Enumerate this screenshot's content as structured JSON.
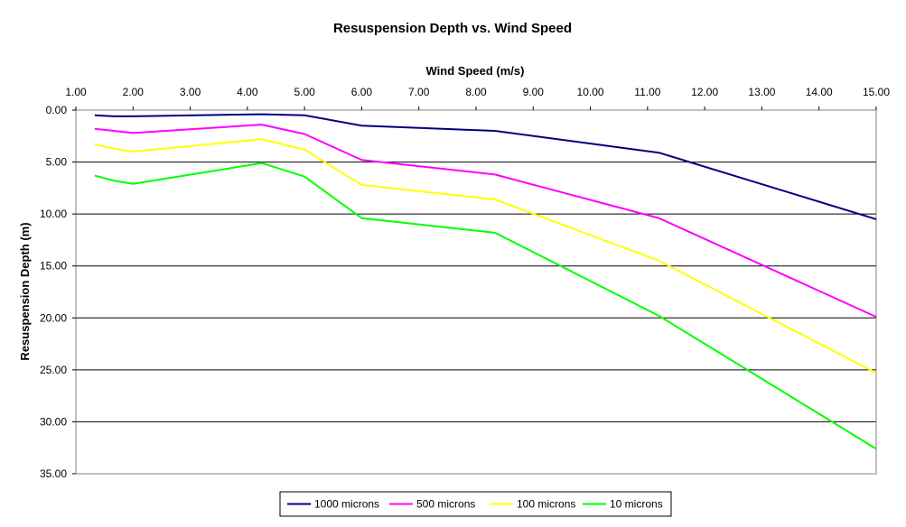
{
  "chart_data": {
    "type": "line",
    "title": "Resuspension Depth vs. Wind Speed",
    "xlabel": "Wind Speed (m/s)",
    "ylabel": "Resuspension Depth (m)",
    "xlim": [
      1,
      15
    ],
    "ylim": [
      0,
      35
    ],
    "y_reversed": true,
    "x_axis_position": "top",
    "x_ticks": [
      "1.00",
      "2.00",
      "3.00",
      "4.00",
      "5.00",
      "6.00",
      "7.00",
      "8.00",
      "9.00",
      "10.00",
      "11.00",
      "12.00",
      "13.00",
      "14.00",
      "15.00"
    ],
    "y_ticks": [
      "0.00",
      "5.00",
      "10.00",
      "15.00",
      "20.00",
      "25.00",
      "30.00",
      "35.00"
    ],
    "grid": "horizontal",
    "legend_position": "bottom",
    "x": [
      1.33,
      1.67,
      2.0,
      4.25,
      5.0,
      6.0,
      8.33,
      11.2,
      15.0
    ],
    "series": [
      {
        "name": "1000 microns",
        "color": "#000080",
        "values": [
          0.5,
          0.6,
          0.6,
          0.4,
          0.5,
          1.5,
          2.0,
          4.1,
          10.5
        ]
      },
      {
        "name": "500 microns",
        "color": "#ff00ff",
        "values": [
          1.8,
          2.0,
          2.2,
          1.4,
          2.3,
          4.8,
          6.2,
          10.4,
          19.9
        ]
      },
      {
        "name": "100 microns",
        "color": "#ffff00",
        "values": [
          3.3,
          3.7,
          4.0,
          2.8,
          3.8,
          7.2,
          8.6,
          14.5,
          25.3
        ]
      },
      {
        "name": "10 microns",
        "color": "#00ff00",
        "values": [
          6.3,
          6.8,
          7.1,
          5.1,
          6.4,
          10.4,
          11.8,
          19.8,
          32.6
        ]
      }
    ]
  }
}
